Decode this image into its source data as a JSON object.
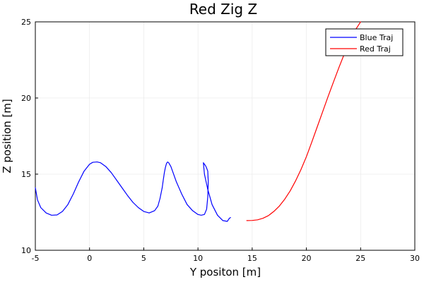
{
  "chart_data": {
    "type": "line",
    "title": "Red Zig Z",
    "xlabel": "Y positon [m]",
    "ylabel": "Z position [m]",
    "xlim": [
      -5,
      30
    ],
    "ylim": [
      10,
      25
    ],
    "xticks": [
      -5,
      0,
      5,
      10,
      15,
      20,
      25,
      30
    ],
    "yticks": [
      10,
      15,
      20,
      25
    ],
    "grid": true,
    "legend_position": "top-right",
    "series": [
      {
        "name": "Blue Traj",
        "color": "#0000ff",
        "x": [
          -5.0,
          -4.8,
          -4.5,
          -4.0,
          -3.5,
          -3.0,
          -2.5,
          -2.0,
          -1.5,
          -1.0,
          -0.5,
          0.0,
          0.3,
          0.7,
          1.0,
          1.5,
          2.0,
          2.5,
          3.0,
          3.5,
          4.0,
          4.5,
          5.0,
          5.5,
          6.0,
          6.3,
          6.5,
          6.7,
          6.8,
          6.9,
          7.0,
          7.1,
          7.2,
          7.3,
          7.5,
          7.7,
          8.0,
          8.5,
          9.0,
          9.5,
          10.0,
          10.3,
          10.6,
          10.8,
          10.9,
          10.95,
          10.9,
          10.8,
          10.7,
          10.6,
          10.5,
          10.6,
          10.9,
          11.3,
          11.8,
          12.3,
          12.7,
          12.8,
          12.9,
          13.0
        ],
        "y": [
          14.1,
          13.3,
          12.8,
          12.45,
          12.3,
          12.32,
          12.55,
          13.0,
          13.7,
          14.5,
          15.2,
          15.65,
          15.78,
          15.8,
          15.75,
          15.5,
          15.1,
          14.6,
          14.1,
          13.6,
          13.15,
          12.8,
          12.55,
          12.45,
          12.6,
          12.9,
          13.4,
          14.1,
          14.6,
          15.1,
          15.45,
          15.7,
          15.8,
          15.75,
          15.5,
          15.1,
          14.5,
          13.7,
          13.0,
          12.6,
          12.35,
          12.3,
          12.35,
          12.7,
          13.5,
          14.5,
          15.2,
          15.4,
          15.55,
          15.65,
          15.75,
          15.0,
          14.0,
          13.0,
          12.3,
          11.95,
          11.9,
          12.0,
          12.1,
          12.15
        ],
        "line_only": true
      },
      {
        "name": "Red Traj",
        "color": "#ff0000",
        "x": [
          14.5,
          15.0,
          15.5,
          16.0,
          16.5,
          17.0,
          17.5,
          18.0,
          18.5,
          19.0,
          19.5,
          20.0,
          20.5,
          21.0,
          21.5,
          22.0,
          22.5,
          23.0,
          23.5,
          24.0,
          24.5,
          25.0
        ],
        "y": [
          11.95,
          11.96,
          12.0,
          12.1,
          12.28,
          12.55,
          12.9,
          13.35,
          13.9,
          14.55,
          15.3,
          16.15,
          17.1,
          18.1,
          19.1,
          20.1,
          21.05,
          22.0,
          22.9,
          23.75,
          24.45,
          25.0
        ]
      }
    ]
  }
}
